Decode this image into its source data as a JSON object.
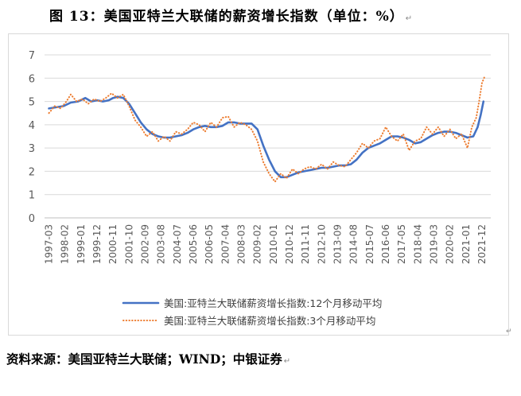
{
  "page": {
    "title": "图 13：美国亚特兰大联储的薪资增长指数（单位：%）",
    "title_mark": "↵",
    "source": "资料来源：美国亚特兰大联储；WIND；中银证券",
    "source_mark": "↵",
    "corner_mark": "↵"
  },
  "chart_data": {
    "type": "line",
    "title": "",
    "xlabel": "",
    "ylabel": "",
    "ylim": [
      0,
      7
    ],
    "yticks": [
      "0",
      "1",
      "2",
      "3",
      "4",
      "5",
      "6",
      "7"
    ],
    "grid": "horizontal",
    "legend_position": "bottom",
    "x_tick_labels": [
      "1997-03",
      "1998-02",
      "1999-01",
      "1999-12",
      "2000-11",
      "2001-10",
      "2002-09",
      "2003-08",
      "2004-07",
      "2005-06",
      "2006-05",
      "2007-04",
      "2008-03",
      "2009-02",
      "2010-01",
      "2010-12",
      "2011-11",
      "2012-10",
      "2013-09",
      "2014-08",
      "2015-07",
      "2016-06",
      "2017-05",
      "2018-04",
      "2019-03",
      "2020-02",
      "2021-01",
      "2021-12"
    ],
    "series": [
      {
        "name": "美国:亚特兰大联储薪资增长指数:12个月移动平均",
        "color": "#4472C4",
        "style": "solid",
        "points": [
          [
            "1997-03",
            4.7
          ],
          [
            "1997-08",
            4.75
          ],
          [
            "1998-01",
            4.8
          ],
          [
            "1998-06",
            4.95
          ],
          [
            "1998-11",
            5.0
          ],
          [
            "1999-04",
            5.15
          ],
          [
            "1999-08",
            5.0
          ],
          [
            "1999-12",
            5.05
          ],
          [
            "2000-04",
            5.0
          ],
          [
            "2000-08",
            5.05
          ],
          [
            "2000-11",
            5.15
          ],
          [
            "2001-02",
            5.2
          ],
          [
            "2001-06",
            5.15
          ],
          [
            "2001-10",
            4.9
          ],
          [
            "2002-02",
            4.5
          ],
          [
            "2002-06",
            4.1
          ],
          [
            "2002-10",
            3.8
          ],
          [
            "2003-02",
            3.6
          ],
          [
            "2003-06",
            3.5
          ],
          [
            "2003-10",
            3.45
          ],
          [
            "2004-02",
            3.45
          ],
          [
            "2004-06",
            3.5
          ],
          [
            "2004-10",
            3.55
          ],
          [
            "2005-02",
            3.65
          ],
          [
            "2005-06",
            3.8
          ],
          [
            "2005-10",
            3.9
          ],
          [
            "2006-02",
            3.95
          ],
          [
            "2006-06",
            3.9
          ],
          [
            "2006-10",
            3.9
          ],
          [
            "2007-02",
            3.95
          ],
          [
            "2007-06",
            4.1
          ],
          [
            "2007-10",
            4.1
          ],
          [
            "2008-02",
            4.05
          ],
          [
            "2008-06",
            4.05
          ],
          [
            "2008-10",
            4.05
          ],
          [
            "2009-02",
            3.8
          ],
          [
            "2009-06",
            3.1
          ],
          [
            "2009-10",
            2.5
          ],
          [
            "2010-02",
            2.0
          ],
          [
            "2010-06",
            1.75
          ],
          [
            "2010-10",
            1.75
          ],
          [
            "2011-02",
            1.85
          ],
          [
            "2011-06",
            1.95
          ],
          [
            "2011-10",
            2.0
          ],
          [
            "2012-02",
            2.05
          ],
          [
            "2012-06",
            2.1
          ],
          [
            "2012-10",
            2.15
          ],
          [
            "2013-02",
            2.15
          ],
          [
            "2013-06",
            2.2
          ],
          [
            "2013-10",
            2.25
          ],
          [
            "2014-02",
            2.25
          ],
          [
            "2014-06",
            2.3
          ],
          [
            "2014-10",
            2.5
          ],
          [
            "2015-02",
            2.8
          ],
          [
            "2015-06",
            3.0
          ],
          [
            "2015-10",
            3.1
          ],
          [
            "2016-02",
            3.2
          ],
          [
            "2016-06",
            3.35
          ],
          [
            "2016-10",
            3.5
          ],
          [
            "2017-02",
            3.5
          ],
          [
            "2017-06",
            3.45
          ],
          [
            "2017-10",
            3.35
          ],
          [
            "2018-02",
            3.2
          ],
          [
            "2018-06",
            3.25
          ],
          [
            "2018-10",
            3.4
          ],
          [
            "2019-02",
            3.55
          ],
          [
            "2019-06",
            3.65
          ],
          [
            "2019-10",
            3.7
          ],
          [
            "2020-02",
            3.7
          ],
          [
            "2020-06",
            3.65
          ],
          [
            "2020-10",
            3.55
          ],
          [
            "2021-02",
            3.45
          ],
          [
            "2021-06",
            3.5
          ],
          [
            "2021-09",
            3.9
          ],
          [
            "2021-11",
            4.4
          ],
          [
            "2022-01",
            5.0
          ]
        ]
      },
      {
        "name": "美国:亚特兰大联储薪资增长指数:3个月移动平均",
        "color": "#ED7D31",
        "style": "dotted",
        "points": [
          [
            "1997-03",
            4.5
          ],
          [
            "1997-07",
            4.8
          ],
          [
            "1997-11",
            4.7
          ],
          [
            "1998-03",
            5.0
          ],
          [
            "1998-06",
            5.3
          ],
          [
            "1998-10",
            5.0
          ],
          [
            "1999-02",
            5.1
          ],
          [
            "1999-06",
            4.9
          ],
          [
            "1999-10",
            5.1
          ],
          [
            "2000-02",
            5.0
          ],
          [
            "2000-06",
            5.15
          ],
          [
            "2000-10",
            5.35
          ],
          [
            "2001-02",
            5.15
          ],
          [
            "2001-06",
            5.3
          ],
          [
            "2001-10",
            4.8
          ],
          [
            "2002-02",
            4.2
          ],
          [
            "2002-06",
            3.9
          ],
          [
            "2002-10",
            3.5
          ],
          [
            "2003-02",
            3.7
          ],
          [
            "2003-06",
            3.3
          ],
          [
            "2003-10",
            3.5
          ],
          [
            "2004-02",
            3.3
          ],
          [
            "2004-06",
            3.7
          ],
          [
            "2004-10",
            3.6
          ],
          [
            "2005-02",
            3.8
          ],
          [
            "2005-06",
            4.1
          ],
          [
            "2005-10",
            4.0
          ],
          [
            "2006-02",
            3.7
          ],
          [
            "2006-06",
            4.1
          ],
          [
            "2006-10",
            3.9
          ],
          [
            "2007-02",
            4.3
          ],
          [
            "2007-06",
            4.35
          ],
          [
            "2007-10",
            3.9
          ],
          [
            "2008-02",
            4.1
          ],
          [
            "2008-06",
            4.0
          ],
          [
            "2008-10",
            3.8
          ],
          [
            "2009-02",
            3.3
          ],
          [
            "2009-06",
            2.4
          ],
          [
            "2009-10",
            1.9
          ],
          [
            "2010-02",
            1.55
          ],
          [
            "2010-06",
            1.9
          ],
          [
            "2010-10",
            1.7
          ],
          [
            "2011-02",
            2.1
          ],
          [
            "2011-06",
            1.9
          ],
          [
            "2011-10",
            2.1
          ],
          [
            "2012-02",
            2.2
          ],
          [
            "2012-06",
            2.1
          ],
          [
            "2012-10",
            2.3
          ],
          [
            "2013-02",
            2.1
          ],
          [
            "2013-06",
            2.4
          ],
          [
            "2013-10",
            2.25
          ],
          [
            "2014-02",
            2.2
          ],
          [
            "2014-06",
            2.5
          ],
          [
            "2014-10",
            2.8
          ],
          [
            "2015-02",
            3.2
          ],
          [
            "2015-06",
            3.0
          ],
          [
            "2015-10",
            3.3
          ],
          [
            "2016-02",
            3.4
          ],
          [
            "2016-06",
            3.9
          ],
          [
            "2016-10",
            3.5
          ],
          [
            "2017-02",
            3.3
          ],
          [
            "2017-06",
            3.6
          ],
          [
            "2017-10",
            2.9
          ],
          [
            "2018-02",
            3.3
          ],
          [
            "2018-06",
            3.4
          ],
          [
            "2018-10",
            3.9
          ],
          [
            "2019-02",
            3.6
          ],
          [
            "2019-06",
            3.9
          ],
          [
            "2019-10",
            3.5
          ],
          [
            "2020-02",
            3.8
          ],
          [
            "2020-06",
            3.4
          ],
          [
            "2020-10",
            3.6
          ],
          [
            "2021-02",
            3.0
          ],
          [
            "2021-05",
            3.9
          ],
          [
            "2021-08",
            4.3
          ],
          [
            "2021-10",
            5.0
          ],
          [
            "2021-12",
            5.8
          ],
          [
            "2022-02",
            6.1
          ]
        ]
      }
    ]
  }
}
